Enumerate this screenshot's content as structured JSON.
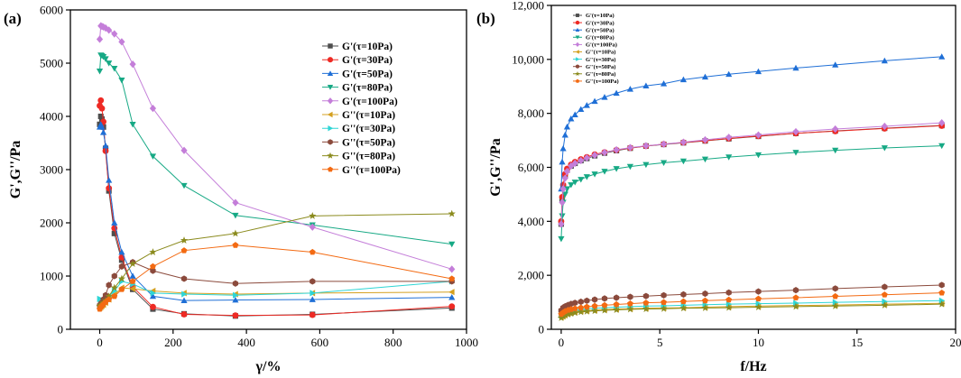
{
  "chart_data": [
    {
      "panel": "(a)",
      "type": "line",
      "xlabel": "γ/%",
      "ylabel": "G',G''/Pa",
      "xlim": [
        -80,
        1000
      ],
      "ylim": [
        0,
        6000
      ],
      "xticks": [
        0,
        200,
        400,
        600,
        800,
        1000
      ],
      "yticks": [
        0,
        1000,
        2000,
        3000,
        4000,
        5000,
        6000
      ],
      "xtick_labels": [
        "0",
        "200",
        "400",
        "600",
        "800",
        "1000"
      ],
      "ytick_labels": [
        "0",
        "1000",
        "2000",
        "3000",
        "4000",
        "5000",
        "6000"
      ],
      "legend_position": "top-right",
      "series": [
        {
          "name": "G'(τ=10Pa)",
          "color": "#4d4d4d",
          "marker": "square",
          "x": [
            0,
            3,
            6,
            10,
            16,
            25,
            40,
            60,
            90,
            145,
            230,
            370,
            580,
            960
          ],
          "y": [
            3850,
            4000,
            3950,
            3800,
            3400,
            2600,
            1800,
            1300,
            750,
            380,
            290,
            250,
            280,
            400
          ]
        },
        {
          "name": "G'(τ=30Pa)",
          "color": "#ee2a24",
          "marker": "circle",
          "x": [
            0,
            3,
            6,
            10,
            16,
            25,
            40,
            60,
            90,
            145,
            230,
            370,
            580,
            960
          ],
          "y": [
            4200,
            4300,
            4150,
            3900,
            3350,
            2650,
            1900,
            1350,
            800,
            420,
            280,
            260,
            270,
            430
          ]
        },
        {
          "name": "G'(τ=50Pa)",
          "color": "#1f6fd6",
          "marker": "triangle-up",
          "x": [
            0,
            3,
            6,
            10,
            16,
            25,
            40,
            60,
            90,
            145,
            230,
            370,
            580,
            960
          ],
          "y": [
            3800,
            3850,
            3800,
            3700,
            3450,
            2800,
            2000,
            1450,
            1000,
            620,
            540,
            550,
            560,
            600
          ]
        },
        {
          "name": "G'(τ=80Pa)",
          "color": "#17a985",
          "marker": "triangle-down",
          "x": [
            0,
            3,
            6,
            10,
            16,
            25,
            40,
            60,
            90,
            145,
            230,
            370,
            580,
            960
          ],
          "y": [
            4850,
            5150,
            5140,
            5120,
            5080,
            5000,
            4900,
            4680,
            3850,
            3250,
            2700,
            2140,
            1960,
            1600
          ]
        },
        {
          "name": "G'(τ=100Pa)",
          "color": "#c47ed9",
          "marker": "diamond",
          "x": [
            0,
            3,
            6,
            10,
            16,
            25,
            40,
            60,
            90,
            145,
            230,
            370,
            580,
            960
          ],
          "y": [
            5450,
            5700,
            5690,
            5680,
            5660,
            5620,
            5550,
            5400,
            4980,
            4150,
            3360,
            2380,
            1920,
            1130
          ]
        },
        {
          "name": "G''(τ=10Pa)",
          "color": "#d4a020",
          "marker": "triangle-left",
          "x": [
            0,
            3,
            6,
            10,
            16,
            25,
            40,
            60,
            90,
            145,
            230,
            370,
            580,
            960
          ],
          "y": [
            400,
            420,
            440,
            460,
            500,
            560,
            650,
            780,
            760,
            720,
            680,
            660,
            680,
            700
          ]
        },
        {
          "name": "G''(τ=30Pa)",
          "color": "#2ed5d5",
          "marker": "triangle-right",
          "x": [
            0,
            3,
            6,
            10,
            16,
            25,
            40,
            60,
            90,
            145,
            230,
            370,
            580,
            960
          ],
          "y": [
            570,
            560,
            550,
            540,
            560,
            620,
            720,
            900,
            850,
            680,
            660,
            640,
            680,
            900
          ]
        },
        {
          "name": "G''(τ=50Pa)",
          "color": "#8b4a3c",
          "marker": "hexagon",
          "x": [
            0,
            3,
            6,
            10,
            16,
            25,
            40,
            60,
            90,
            145,
            230,
            370,
            580,
            960
          ],
          "y": [
            450,
            480,
            500,
            560,
            640,
            830,
            1000,
            1180,
            1260,
            1100,
            950,
            860,
            900,
            900
          ]
        },
        {
          "name": "G''(τ=80Pa)",
          "color": "#8b8b1e",
          "marker": "star",
          "x": [
            0,
            3,
            6,
            10,
            16,
            25,
            40,
            60,
            90,
            145,
            230,
            370,
            580,
            960
          ],
          "y": [
            430,
            450,
            470,
            500,
            540,
            620,
            780,
            950,
            1230,
            1450,
            1670,
            1800,
            2130,
            2170
          ]
        },
        {
          "name": "G''(τ=100Pa)",
          "color": "#f36a12",
          "marker": "pentagon",
          "x": [
            0,
            3,
            6,
            10,
            16,
            25,
            40,
            60,
            90,
            145,
            230,
            370,
            580,
            960
          ],
          "y": [
            380,
            420,
            440,
            470,
            510,
            560,
            620,
            750,
            900,
            1180,
            1480,
            1580,
            1450,
            950
          ]
        }
      ]
    },
    {
      "panel": "(b)",
      "type": "line",
      "xlabel": "f/Hz",
      "ylabel": "G',G''/Pa",
      "xlim": [
        -0.5,
        20
      ],
      "ylim": [
        0,
        12000
      ],
      "xticks": [
        0,
        5,
        10,
        15,
        20
      ],
      "yticks": [
        0,
        2000,
        4000,
        6000,
        8000,
        10000,
        12000
      ],
      "xtick_labels": [
        "0",
        "5",
        "10",
        "15",
        "20"
      ],
      "ytick_labels": [
        "0",
        "2,000",
        "4,000",
        "6,000",
        "8,000",
        "10,000",
        "12,000"
      ],
      "legend_position": "top-left",
      "series": [
        {
          "name": "G'(τ=10Pa)",
          "color": "#4d4d4d",
          "marker": "square",
          "x": [
            0,
            0.05,
            0.1,
            0.2,
            0.3,
            0.5,
            0.7,
            1.0,
            1.3,
            1.7,
            2.2,
            2.8,
            3.5,
            4.3,
            5.2,
            6.2,
            7.3,
            8.5,
            10,
            11.9,
            13.9,
            16.4,
            19.3
          ],
          "y": [
            3900,
            4800,
            5300,
            5700,
            5900,
            6050,
            6150,
            6250,
            6330,
            6430,
            6530,
            6620,
            6710,
            6790,
            6850,
            6910,
            6980,
            7060,
            7150,
            7260,
            7350,
            7450,
            7550
          ]
        },
        {
          "name": "G'(τ=30Pa)",
          "color": "#ee2a24",
          "marker": "circle",
          "x": [
            0,
            0.05,
            0.1,
            0.2,
            0.3,
            0.5,
            0.7,
            1.0,
            1.3,
            1.7,
            2.2,
            2.8,
            3.5,
            4.3,
            5.2,
            6.2,
            7.3,
            8.5,
            10,
            11.9,
            13.9,
            16.4,
            19.3
          ],
          "y": [
            4000,
            4900,
            5350,
            5750,
            5950,
            6100,
            6200,
            6300,
            6380,
            6480,
            6560,
            6640,
            6720,
            6790,
            6860,
            6920,
            6990,
            7070,
            7160,
            7260,
            7340,
            7440,
            7540
          ]
        },
        {
          "name": "G'(τ=50Pa)",
          "color": "#1f6fd6",
          "marker": "triangle-up",
          "x": [
            0,
            0.05,
            0.1,
            0.2,
            0.3,
            0.5,
            0.7,
            1.0,
            1.3,
            1.7,
            2.2,
            2.8,
            3.5,
            4.3,
            5.2,
            6.2,
            7.3,
            8.5,
            10,
            11.9,
            13.9,
            16.4,
            19.3
          ],
          "y": [
            5200,
            6200,
            6700,
            7200,
            7500,
            7800,
            7950,
            8150,
            8300,
            8450,
            8600,
            8750,
            8900,
            9020,
            9100,
            9250,
            9350,
            9450,
            9550,
            9680,
            9800,
            9950,
            10100
          ]
        },
        {
          "name": "G'(τ=80Pa)",
          "color": "#17a985",
          "marker": "triangle-down",
          "x": [
            0,
            0.05,
            0.1,
            0.2,
            0.3,
            0.5,
            0.7,
            1.0,
            1.3,
            1.7,
            2.2,
            2.8,
            3.5,
            4.3,
            5.2,
            6.2,
            7.3,
            8.5,
            10,
            11.9,
            13.9,
            16.4,
            19.3
          ],
          "y": [
            3350,
            4200,
            4700,
            5000,
            5200,
            5350,
            5450,
            5550,
            5650,
            5750,
            5850,
            5950,
            6030,
            6100,
            6170,
            6230,
            6300,
            6380,
            6460,
            6550,
            6630,
            6720,
            6800
          ]
        },
        {
          "name": "G'(τ=100Pa)",
          "color": "#c47ed9",
          "marker": "diamond",
          "x": [
            0,
            0.05,
            0.1,
            0.2,
            0.3,
            0.5,
            0.7,
            1.0,
            1.3,
            1.7,
            2.2,
            2.8,
            3.5,
            4.3,
            5.2,
            6.2,
            7.3,
            8.5,
            10,
            11.9,
            13.9,
            16.4,
            19.3
          ],
          "y": [
            3900,
            4700,
            5200,
            5600,
            5850,
            6050,
            6150,
            6250,
            6350,
            6450,
            6550,
            6650,
            6730,
            6800,
            6860,
            6930,
            7020,
            7110,
            7200,
            7320,
            7420,
            7520,
            7650
          ]
        },
        {
          "name": "G''(τ=10Pa)",
          "color": "#d4a020",
          "marker": "triangle-left",
          "x": [
            0,
            0.1,
            0.2,
            0.35,
            0.5,
            0.7,
            1.0,
            1.3,
            1.7,
            2.2,
            2.8,
            3.5,
            4.3,
            5.2,
            6.2,
            7.3,
            8.5,
            10,
            11.9,
            13.9,
            16.4,
            19.3
          ],
          "y": [
            450,
            500,
            540,
            580,
            610,
            640,
            670,
            690,
            710,
            730,
            750,
            760,
            780,
            790,
            800,
            820,
            840,
            860,
            880,
            900,
            930,
            960
          ]
        },
        {
          "name": "G''(τ=30Pa)",
          "color": "#2ed5d5",
          "marker": "triangle-right",
          "x": [
            0,
            0.1,
            0.2,
            0.35,
            0.5,
            0.7,
            1.0,
            1.3,
            1.7,
            2.2,
            2.8,
            3.5,
            4.3,
            5.2,
            6.2,
            7.3,
            8.5,
            10,
            11.9,
            13.9,
            16.4,
            19.3
          ],
          "y": [
            520,
            570,
            610,
            650,
            680,
            710,
            740,
            760,
            780,
            800,
            820,
            840,
            860,
            870,
            890,
            910,
            930,
            950,
            970,
            1000,
            1030,
            1060
          ]
        },
        {
          "name": "G''(τ=50Pa)",
          "color": "#8b4a3c",
          "marker": "hexagon",
          "x": [
            0,
            0.1,
            0.2,
            0.35,
            0.5,
            0.7,
            1.0,
            1.3,
            1.7,
            2.2,
            2.8,
            3.5,
            4.3,
            5.2,
            6.2,
            7.3,
            8.5,
            10,
            11.9,
            13.9,
            16.4,
            19.3
          ],
          "y": [
            700,
            800,
            850,
            900,
            940,
            980,
            1020,
            1060,
            1100,
            1140,
            1170,
            1200,
            1230,
            1260,
            1290,
            1320,
            1360,
            1400,
            1450,
            1510,
            1570,
            1640
          ]
        },
        {
          "name": "G''(τ=80Pa)",
          "color": "#8b8b1e",
          "marker": "star",
          "x": [
            0,
            0.1,
            0.2,
            0.35,
            0.5,
            0.7,
            1.0,
            1.3,
            1.7,
            2.2,
            2.8,
            3.5,
            4.3,
            5.2,
            6.2,
            7.3,
            8.5,
            10,
            11.9,
            13.9,
            16.4,
            19.3
          ],
          "y": [
            420,
            470,
            510,
            550,
            580,
            610,
            640,
            660,
            680,
            700,
            720,
            740,
            750,
            760,
            780,
            790,
            800,
            820,
            840,
            860,
            890,
            930
          ]
        },
        {
          "name": "G''(τ=100Pa)",
          "color": "#f36a12",
          "marker": "pentagon",
          "x": [
            0,
            0.1,
            0.2,
            0.35,
            0.5,
            0.7,
            1.0,
            1.3,
            1.7,
            2.2,
            2.8,
            3.5,
            4.3,
            5.2,
            6.2,
            7.3,
            8.5,
            10,
            11.9,
            13.9,
            16.4,
            19.3
          ],
          "y": [
            560,
            620,
            670,
            710,
            740,
            770,
            800,
            830,
            860,
            890,
            920,
            950,
            980,
            1000,
            1030,
            1060,
            1090,
            1130,
            1170,
            1220,
            1280,
            1350
          ]
        }
      ]
    }
  ]
}
